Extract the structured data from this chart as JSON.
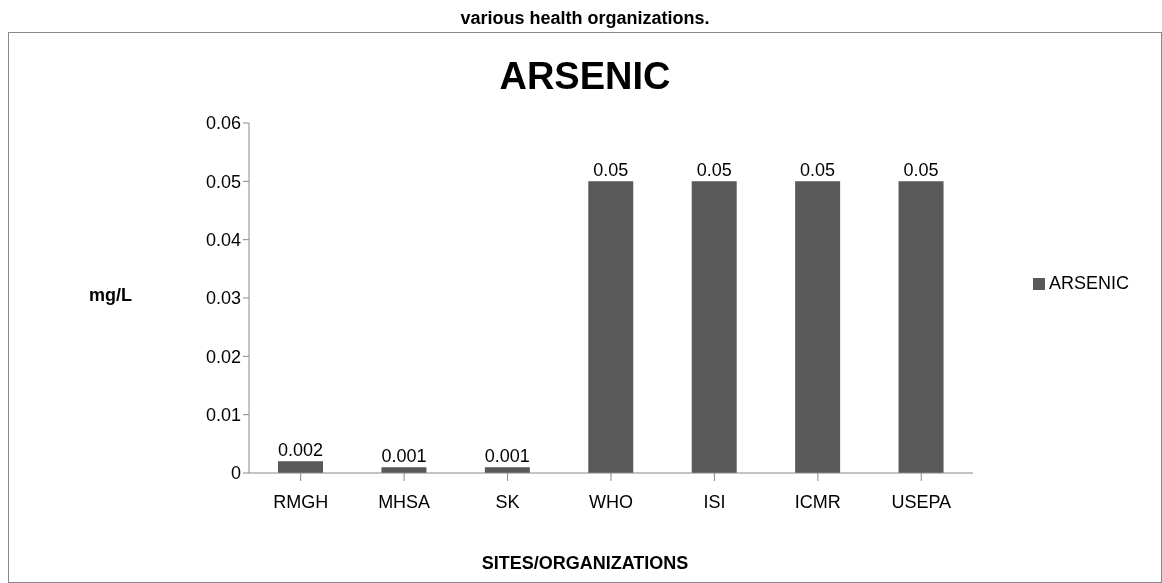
{
  "chart_data": {
    "type": "bar",
    "title": "ARSENIC",
    "xlabel": "SITES/ORGANIZATIONS",
    "ylabel": "mg/L",
    "annotations": [
      "various health organizations."
    ],
    "categories": [
      "RMGH",
      "MHSA",
      "SK",
      "WHO",
      "ISI",
      "ICMR",
      "USEPA"
    ],
    "series": [
      {
        "name": "ARSENIC",
        "color": "#595959",
        "values": [
          0.002,
          0.001,
          0.001,
          0.05,
          0.05,
          0.05,
          0.05
        ]
      }
    ],
    "ylim": [
      0,
      0.06
    ],
    "yticks": [
      0,
      0.01,
      0.02,
      0.03,
      0.04,
      0.05,
      0.06
    ],
    "grid": false,
    "legend": "right",
    "data_labels": true
  }
}
